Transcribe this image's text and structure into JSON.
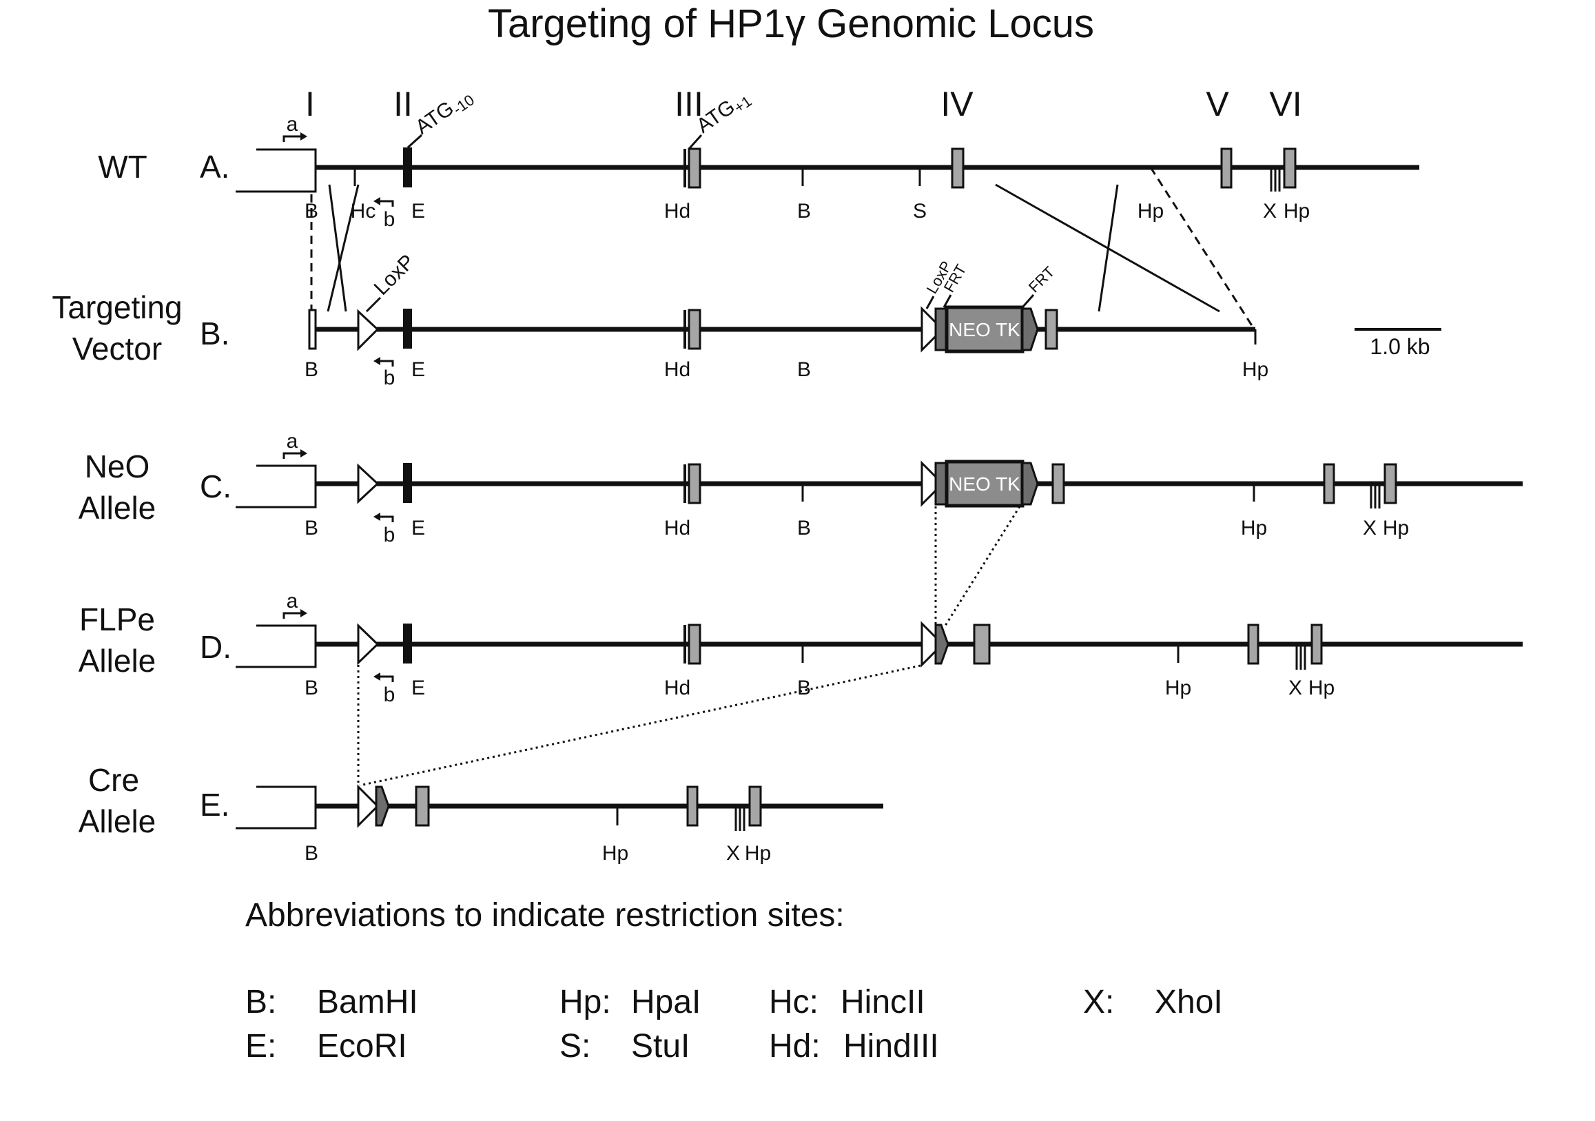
{
  "title": "Targeting of HP1γ Genomic Locus",
  "exons": [
    "I",
    "II",
    "III",
    "IV",
    "V",
    "VI"
  ],
  "rows": [
    {
      "letter": "A.",
      "name": [
        "WT"
      ]
    },
    {
      "letter": "B.",
      "name": [
        "Targeting",
        "Vector"
      ]
    },
    {
      "letter": "C.",
      "name": [
        "NeO",
        "Allele"
      ]
    },
    {
      "letter": "D.",
      "name": [
        "FLPe",
        "Allele"
      ]
    },
    {
      "letter": "E.",
      "name": [
        "Cre",
        "Allele"
      ]
    }
  ],
  "primers": {
    "forward": "a",
    "reverse": "b"
  },
  "site_labels": {
    "wt": [
      "B",
      "Hc",
      "E",
      "Hd",
      "B",
      "S",
      "Hp",
      "X",
      "Hp"
    ],
    "vector": [
      "B",
      "E",
      "Hd",
      "B",
      "Hp"
    ],
    "neo": [
      "B",
      "E",
      "Hd",
      "B",
      "Hp",
      "X",
      "Hp"
    ],
    "flpe": [
      "B",
      "E",
      "Hd",
      "B",
      "Hp",
      "X",
      "Hp"
    ],
    "cre": [
      "B",
      "Hp",
      "X",
      "Hp"
    ]
  },
  "features": {
    "atg_minus10": "ATG",
    "atg_minus10_sub": "-10",
    "atg_plus1": "ATG",
    "atg_plus1_sub": "+1",
    "loxp": "LoxP",
    "frt": "FRT",
    "cassette": "NEO TK"
  },
  "scale_bar": "1.0 kb",
  "legend": {
    "heading": "Abbreviations to indicate restriction sites:",
    "entries": [
      {
        "abbr": "B:",
        "enzyme": "BamHI"
      },
      {
        "abbr": "E:",
        "enzyme": "EcoRI"
      },
      {
        "abbr": "Hp:",
        "enzyme": "HpaI"
      },
      {
        "abbr": "S:",
        "enzyme": "StuI"
      },
      {
        "abbr": "Hc:",
        "enzyme": "HincII"
      },
      {
        "abbr": "Hd:",
        "enzyme": "HindIII"
      },
      {
        "abbr": "X:",
        "enzyme": "XhoI"
      }
    ]
  },
  "colors": {
    "line": "#111111",
    "exon_fill": "#a6a6a6",
    "cassette_fill": "#8c8c8c",
    "frt_fill": "#6e6e6e"
  }
}
